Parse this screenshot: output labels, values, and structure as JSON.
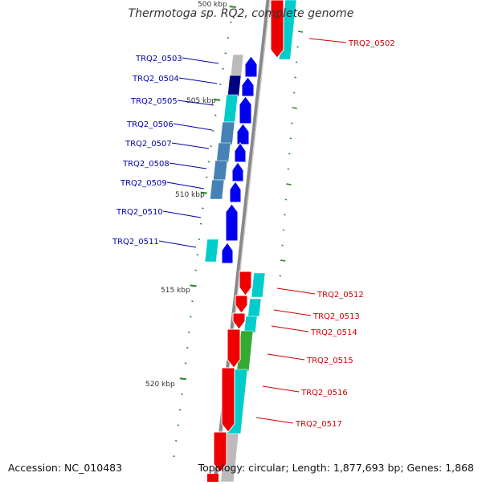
{
  "title": "Thermotoga sp. RQ2, complete genome",
  "footer": {
    "accession": "Accession: NC_010483",
    "topology": "Topology: circular; Length: 1,877,693 bp; Genes: 1,868"
  },
  "scale_labels": [
    "500 kbp",
    "505 kbp",
    "510 kbp",
    "515 kbp",
    "520 kbp"
  ],
  "genes_left": [
    "TRQ2_0503",
    "TRQ2_0504",
    "TRQ2_0505",
    "TRQ2_0506",
    "TRQ2_0507",
    "TRQ2_0508",
    "TRQ2_0509",
    "TRQ2_0510",
    "TRQ2_0511"
  ],
  "genes_right": [
    "TRQ2_0502",
    "TRQ2_0512",
    "TRQ2_0513",
    "TRQ2_0514",
    "TRQ2_0515",
    "TRQ2_0516",
    "TRQ2_0517"
  ],
  "colors": {
    "forward_strand": "#0000ee",
    "reverse_strand": "#ee0000",
    "forward_label": "#0000aa",
    "reverse_label": "#cc0000",
    "backbone": "#888888",
    "tick": "#228b22",
    "cog_cyan": "#00cccc",
    "cog_navy": "#000080",
    "cog_steel": "#4682b4",
    "cog_green": "#33aa33",
    "cog_grey": "#bbbbbb"
  }
}
